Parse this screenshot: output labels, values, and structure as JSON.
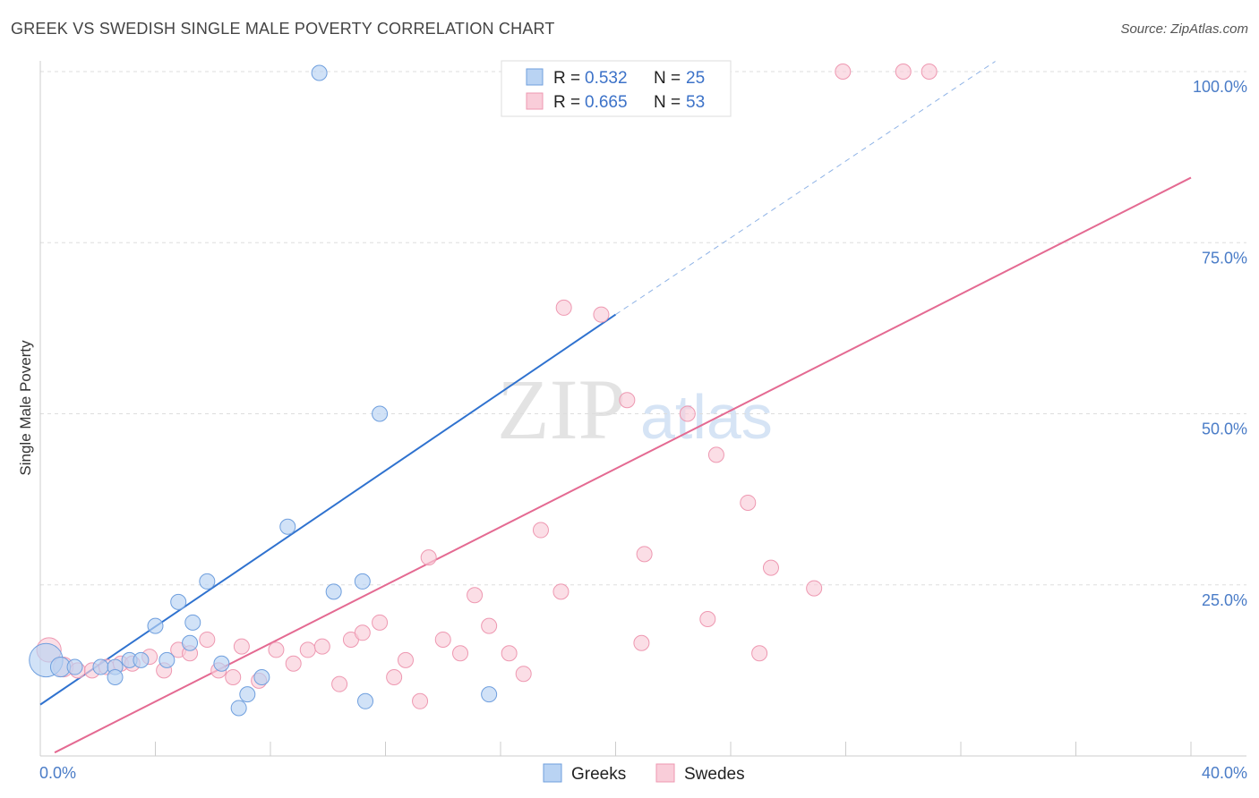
{
  "header": {
    "title": "GREEK VS SWEDISH SINGLE MALE POVERTY CORRELATION CHART",
    "source": "Source: ZipAtlas.com"
  },
  "watermark": {
    "zip": "ZIP",
    "atlas": "atlas"
  },
  "legend_top": {
    "rows": [
      {
        "r_label": "R = ",
        "r_value": "0.532",
        "n_label": "N = ",
        "n_value": "25"
      },
      {
        "r_label": "R = ",
        "r_value": "0.665",
        "n_label": "N = ",
        "n_value": "53"
      }
    ]
  },
  "legend_bottom": {
    "greeks": "Greeks",
    "swedes": "Swedes"
  },
  "colors": {
    "greeks_fill": "#b9d3f3",
    "greeks_stroke": "#6f9fde",
    "greeks_line": "#2f72cf",
    "swedes_fill": "#f9cdd9",
    "swedes_stroke": "#ee98b1",
    "swedes_line": "#e46a92",
    "tick_text": "#4a7cc7",
    "grid": "#dddddd"
  },
  "chart_data": {
    "type": "scatter",
    "title": "GREEK VS SWEDISH SINGLE MALE POVERTY CORRELATION CHART",
    "xlabel": "",
    "ylabel": "Single Male Poverty",
    "xlim": [
      0,
      40
    ],
    "ylim": [
      0,
      100
    ],
    "x_ticks": [
      "0.0%",
      "40.0%"
    ],
    "y_ticks": [
      "25.0%",
      "50.0%",
      "75.0%",
      "100.0%"
    ],
    "grid": true,
    "legend_position": "top-center",
    "series": [
      {
        "name": "Greeks",
        "R": 0.532,
        "N": 25,
        "trend": {
          "x0": 0,
          "y0": 7.5,
          "x1": 20.0,
          "y1": 64.5,
          "dashed_to_x": 33.2,
          "dashed_to_y": 101.5
        },
        "points": [
          [
            0.2,
            14.0,
            2.2
          ],
          [
            0.7,
            13.0,
            1.3
          ],
          [
            1.2,
            13.0,
            1
          ],
          [
            2.1,
            13.0,
            1
          ],
          [
            2.6,
            13.0,
            1
          ],
          [
            3.1,
            14.0,
            1
          ],
          [
            3.5,
            14.0,
            1
          ],
          [
            4.0,
            19.0,
            1
          ],
          [
            4.4,
            14.0,
            1
          ],
          [
            4.8,
            22.5,
            1
          ],
          [
            5.3,
            19.5,
            1
          ],
          [
            5.8,
            25.5,
            1
          ],
          [
            6.3,
            13.5,
            1
          ],
          [
            6.9,
            7.0,
            1
          ],
          [
            7.2,
            9.0,
            1
          ],
          [
            7.7,
            11.5,
            1
          ],
          [
            8.6,
            33.5,
            1
          ],
          [
            9.7,
            99.8,
            1
          ],
          [
            10.2,
            24.0,
            1
          ],
          [
            11.2,
            25.5,
            1
          ],
          [
            11.3,
            8.0,
            1
          ],
          [
            11.8,
            50.0,
            1
          ],
          [
            15.6,
            9.0,
            1
          ],
          [
            5.2,
            16.5,
            1
          ],
          [
            2.6,
            11.5,
            1
          ]
        ]
      },
      {
        "name": "Swedes",
        "R": 0.665,
        "N": 53,
        "trend": {
          "x0": 0.5,
          "y0": 0.5,
          "x1": 40.0,
          "y1": 84.5
        },
        "points": [
          [
            0.3,
            15.5,
            1.6
          ],
          [
            0.8,
            13.0,
            1.3
          ],
          [
            1.3,
            12.5,
            1
          ],
          [
            1.8,
            12.5,
            1
          ],
          [
            2.3,
            13.0,
            1
          ],
          [
            2.8,
            13.5,
            1
          ],
          [
            3.2,
            13.5,
            1
          ],
          [
            3.8,
            14.5,
            1
          ],
          [
            4.3,
            12.5,
            1
          ],
          [
            4.8,
            15.5,
            1
          ],
          [
            5.2,
            15.0,
            1
          ],
          [
            5.8,
            17.0,
            1
          ],
          [
            6.2,
            12.5,
            1
          ],
          [
            6.7,
            11.5,
            1
          ],
          [
            7.0,
            16.0,
            1
          ],
          [
            7.6,
            11.0,
            1
          ],
          [
            8.2,
            15.5,
            1
          ],
          [
            8.8,
            13.5,
            1
          ],
          [
            9.3,
            15.5,
            1
          ],
          [
            9.8,
            16.0,
            1
          ],
          [
            10.4,
            10.5,
            1
          ],
          [
            10.8,
            17.0,
            1
          ],
          [
            11.2,
            18.0,
            1
          ],
          [
            11.8,
            19.5,
            1
          ],
          [
            12.3,
            11.5,
            1
          ],
          [
            12.7,
            14.0,
            1
          ],
          [
            13.2,
            8.0,
            1
          ],
          [
            13.5,
            29.0,
            1
          ],
          [
            14.0,
            17.0,
            1
          ],
          [
            14.6,
            15.0,
            1
          ],
          [
            15.1,
            23.5,
            1
          ],
          [
            15.6,
            19.0,
            1
          ],
          [
            16.3,
            15.0,
            1
          ],
          [
            16.8,
            12.0,
            1
          ],
          [
            17.4,
            33.0,
            1
          ],
          [
            18.1,
            24.0,
            1
          ],
          [
            18.2,
            65.5,
            1
          ],
          [
            19.5,
            64.5,
            1
          ],
          [
            19.8,
            100.0,
            1
          ],
          [
            20.4,
            52.0,
            1
          ],
          [
            20.9,
            16.5,
            1
          ],
          [
            21.0,
            29.5,
            1
          ],
          [
            22.5,
            50.0,
            1
          ],
          [
            22.7,
            100.0,
            1
          ],
          [
            23.2,
            20.0,
            1
          ],
          [
            23.5,
            44.0,
            1
          ],
          [
            24.6,
            37.0,
            1
          ],
          [
            25.0,
            15.0,
            1
          ],
          [
            25.4,
            27.5,
            1
          ],
          [
            26.9,
            24.5,
            1
          ],
          [
            27.9,
            100.0,
            1
          ],
          [
            30.0,
            100.0,
            1
          ],
          [
            30.9,
            100.0,
            1
          ]
        ]
      }
    ]
  }
}
